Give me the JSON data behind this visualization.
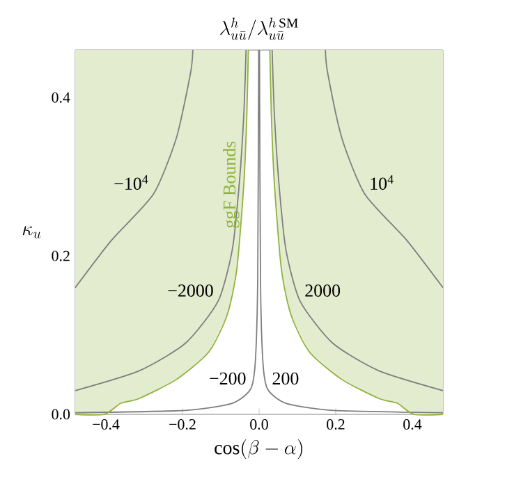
{
  "chart_data": {
    "type": "line",
    "title": "\\lambda^{h}_{u\\bar{u}}/\\lambda^{h\\,\\mathrm{SM}}_{u\\bar{u}}",
    "xlabel": "\\cos(\\beta-\\alpha)",
    "ylabel": "\\kappa_u",
    "xlim": [
      -0.48,
      0.48
    ],
    "ylim": [
      0,
      0.46
    ],
    "xticks": [
      {
        "value": -0.4,
        "label": "−0.4"
      },
      {
        "value": -0.2,
        "label": "−0.2"
      },
      {
        "value": 0,
        "label": "0.0"
      },
      {
        "value": 0.2,
        "label": "0.2"
      },
      {
        "value": 0.4,
        "label": "0.4"
      }
    ],
    "yticks": [
      {
        "value": 0,
        "label": "0.0"
      },
      {
        "value": 0.2,
        "label": "0.2"
      },
      {
        "value": 0.4,
        "label": "0.4"
      }
    ],
    "series": [
      {
        "name": "−10$^{4}$",
        "color": "#7f7f7f",
        "x": [
          -0.48,
          -0.385,
          -0.276,
          -0.216,
          -0.179,
          -0.173
        ],
        "values": [
          0.16,
          0.22,
          0.278,
          0.349,
          0.431,
          0.46
        ]
      },
      {
        "name": "10$^{4}$",
        "color": "#7f7f7f",
        "x": [
          0.48,
          0.385,
          0.276,
          0.216,
          0.179,
          0.173
        ],
        "values": [
          0.16,
          0.22,
          0.278,
          0.349,
          0.431,
          0.46
        ]
      },
      {
        "name": "−2000",
        "color": "#7f7f7f",
        "x": [
          -0.48,
          -0.313,
          -0.192,
          -0.107,
          -0.07,
          -0.052,
          -0.04,
          -0.034
        ],
        "values": [
          0.03,
          0.055,
          0.09,
          0.143,
          0.208,
          0.29,
          0.378,
          0.46
        ]
      },
      {
        "name": "2000",
        "color": "#7f7f7f",
        "x": [
          0.48,
          0.313,
          0.192,
          0.107,
          0.07,
          0.052,
          0.04,
          0.034
        ],
        "values": [
          0.03,
          0.055,
          0.09,
          0.143,
          0.208,
          0.29,
          0.378,
          0.46
        ]
      },
      {
        "name": "−200",
        "color": "#7f7f7f",
        "x": [
          -0.48,
          -0.193,
          -0.07,
          -0.022,
          -0.0098,
          -0.0036,
          -0.001
        ],
        "values": [
          0.002,
          0.005,
          0.014,
          0.032,
          0.067,
          0.173,
          0.46
        ]
      },
      {
        "name": "200",
        "color": "#7f7f7f",
        "x": [
          0.48,
          0.193,
          0.07,
          0.022,
          0.0098,
          0.0036,
          0.001
        ],
        "values": [
          0.002,
          0.005,
          0.014,
          0.032,
          0.067,
          0.173,
          0.46
        ]
      },
      {
        "name": "ggF Bounds",
        "color": "#8fb23c",
        "x": [
          -0.48,
          -0.404,
          -0.361,
          -0.313,
          -0.216,
          -0.131,
          -0.083,
          -0.058,
          -0.04,
          -0.032,
          -0.028
        ],
        "values": [
          0,
          0,
          0.014,
          0.02,
          0.044,
          0.079,
          0.126,
          0.184,
          0.29,
          0.378,
          0.46
        ],
        "lower": [
          0,
          0,
          0.014,
          0.02,
          0.044,
          0.079,
          0.126,
          0.184,
          0.29,
          0.378,
          0.46
        ],
        "upper": [
          0.46,
          0.46,
          0.46,
          0.46,
          0.46,
          0.46,
          0.46,
          0.46,
          0.46,
          0.46,
          0.46
        ]
      },
      {
        "color": "#8fb23c",
        "x": [
          0.48,
          0.404,
          0.361,
          0.313,
          0.216,
          0.131,
          0.083,
          0.058,
          0.04,
          0.032,
          0.028
        ],
        "values": [
          0,
          0,
          0.014,
          0.02,
          0.044,
          0.079,
          0.126,
          0.184,
          0.29,
          0.378,
          0.46
        ],
        "lower": [
          0,
          0,
          0.014,
          0.02,
          0.044,
          0.079,
          0.126,
          0.184,
          0.29,
          0.378,
          0.46
        ],
        "upper": [
          0.46,
          0.46,
          0.46,
          0.46,
          0.46,
          0.46,
          0.46,
          0.46,
          0.46,
          0.46,
          0.46
        ]
      }
    ]
  }
}
